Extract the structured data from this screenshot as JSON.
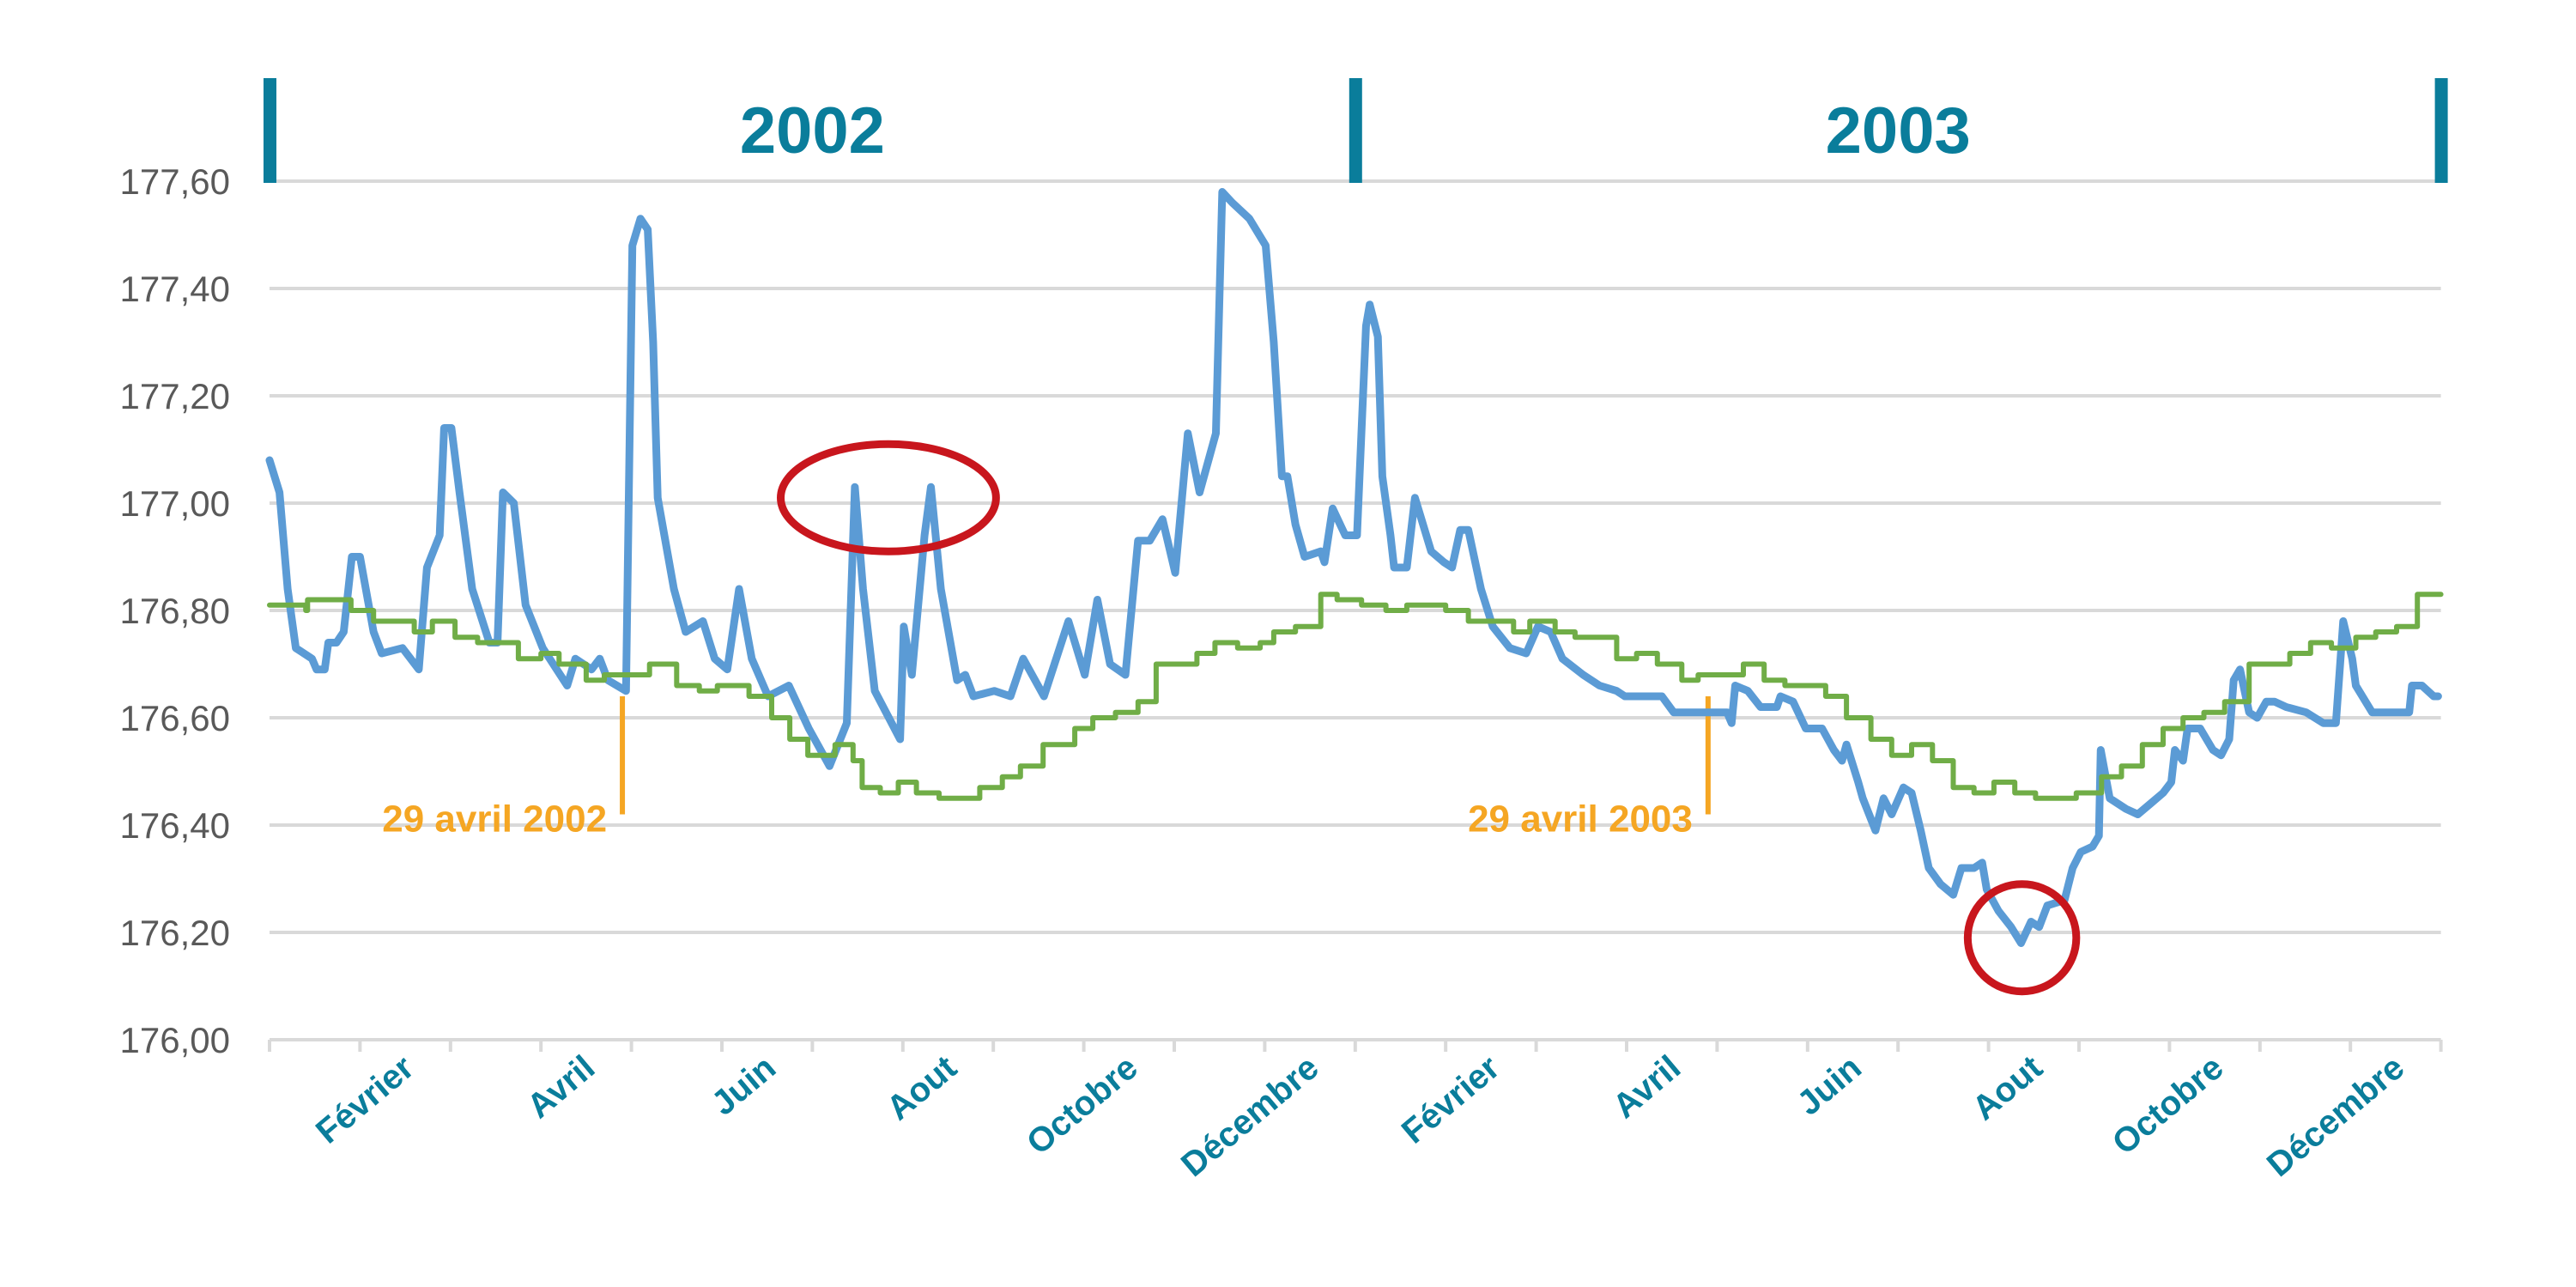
{
  "chart_data": {
    "type": "line",
    "title": "",
    "xlabel": "",
    "ylabel": "",
    "ylim": [
      176.0,
      177.6
    ],
    "xlim_months": [
      0,
      24
    ],
    "grid": true,
    "yticks": [
      "177,60",
      "177,40",
      "177,20",
      "177,00",
      "176,80",
      "176,60",
      "176,40",
      "176,20",
      "176,00"
    ],
    "ytick_values": [
      177.6,
      177.4,
      177.2,
      177.0,
      176.8,
      176.6,
      176.4,
      176.2,
      176.0
    ],
    "xticks": [
      {
        "label": "Février",
        "month": 1
      },
      {
        "label": "Avril",
        "month": 3
      },
      {
        "label": "Juin",
        "month": 5
      },
      {
        "label": "Aout",
        "month": 7
      },
      {
        "label": "Octobre",
        "month": 9
      },
      {
        "label": "Décembre",
        "month": 11
      },
      {
        "label": "Février",
        "month": 13
      },
      {
        "label": "Avril",
        "month": 15
      },
      {
        "label": "Juin",
        "month": 17
      },
      {
        "label": "Aout",
        "month": 19
      },
      {
        "label": "Octobre",
        "month": 21
      },
      {
        "label": "Décembre",
        "month": 23
      }
    ],
    "years": [
      {
        "label": "2002",
        "start": 0,
        "end": 12
      },
      {
        "label": "2003",
        "start": 12,
        "end": 24
      }
    ],
    "annotations": [
      {
        "label": "29 avril 2002",
        "month": 3.9,
        "from": 176.64,
        "to": 176.42
      },
      {
        "label": "29 avril 2003",
        "month": 15.9,
        "from": 176.64,
        "to": 176.42
      }
    ],
    "highlights": [
      {
        "month": 6.84,
        "value": 177.01,
        "rx_months": 1.19,
        "ry_value": 0.1
      },
      {
        "month": 19.37,
        "value": 176.19,
        "rx_months": 0.6,
        "ry_value": 0.1
      }
    ],
    "colors": {
      "observed": "#5b9bd5",
      "reference": "#70ad47",
      "annotation": "#f5a623",
      "highlight": "#c8161d",
      "accent": "#0a7d9b",
      "grid": "#d9d9d9"
    },
    "series": [
      {
        "name": "observed",
        "step": false,
        "points": [
          [
            0,
            177.08
          ],
          [
            0.11,
            177.02
          ],
          [
            0.2,
            176.84
          ],
          [
            0.29,
            176.73
          ],
          [
            0.47,
            176.71
          ],
          [
            0.52,
            176.69
          ],
          [
            0.61,
            176.69
          ],
          [
            0.65,
            176.74
          ],
          [
            0.74,
            176.74
          ],
          [
            0.82,
            176.76
          ],
          [
            0.91,
            176.9
          ],
          [
            1.0,
            176.9
          ],
          [
            1.15,
            176.76
          ],
          [
            1.24,
            176.72
          ],
          [
            1.47,
            176.73
          ],
          [
            1.65,
            176.69
          ],
          [
            1.74,
            176.88
          ],
          [
            1.88,
            176.94
          ],
          [
            1.93,
            177.14
          ],
          [
            2.01,
            177.14
          ],
          [
            2.1,
            177.02
          ],
          [
            2.24,
            176.84
          ],
          [
            2.43,
            176.74
          ],
          [
            2.52,
            176.74
          ],
          [
            2.58,
            177.02
          ],
          [
            2.7,
            177.0
          ],
          [
            2.83,
            176.81
          ],
          [
            3.02,
            176.73
          ],
          [
            3.29,
            176.66
          ],
          [
            3.38,
            176.71
          ],
          [
            3.56,
            176.69
          ],
          [
            3.65,
            176.71
          ],
          [
            3.74,
            176.67
          ],
          [
            3.94,
            176.65
          ],
          [
            4.01,
            177.48
          ],
          [
            4.1,
            177.53
          ],
          [
            4.18,
            177.51
          ],
          [
            4.24,
            177.3
          ],
          [
            4.29,
            177.01
          ],
          [
            4.47,
            176.84
          ],
          [
            4.6,
            176.76
          ],
          [
            4.79,
            176.78
          ],
          [
            4.92,
            176.71
          ],
          [
            5.06,
            176.69
          ],
          [
            5.19,
            176.84
          ],
          [
            5.33,
            176.71
          ],
          [
            5.51,
            176.64
          ],
          [
            5.74,
            176.66
          ],
          [
            5.96,
            176.58
          ],
          [
            6.19,
            176.51
          ],
          [
            6.38,
            176.59
          ],
          [
            6.47,
            177.03
          ],
          [
            6.56,
            176.84
          ],
          [
            6.69,
            176.65
          ],
          [
            6.97,
            176.56
          ],
          [
            7.01,
            176.77
          ],
          [
            7.1,
            176.68
          ],
          [
            7.24,
            176.94
          ],
          [
            7.31,
            177.03
          ],
          [
            7.42,
            176.84
          ],
          [
            7.6,
            176.67
          ],
          [
            7.69,
            176.68
          ],
          [
            7.78,
            176.64
          ],
          [
            8.01,
            176.65
          ],
          [
            8.19,
            176.64
          ],
          [
            8.33,
            176.71
          ],
          [
            8.56,
            176.64
          ],
          [
            8.83,
            176.78
          ],
          [
            9.01,
            176.68
          ],
          [
            9.15,
            176.82
          ],
          [
            9.29,
            176.7
          ],
          [
            9.46,
            176.68
          ],
          [
            9.6,
            176.93
          ],
          [
            9.73,
            176.93
          ],
          [
            9.87,
            176.97
          ],
          [
            10.01,
            176.87
          ],
          [
            10.15,
            177.13
          ],
          [
            10.28,
            177.02
          ],
          [
            10.46,
            177.13
          ],
          [
            10.53,
            177.58
          ],
          [
            10.64,
            177.56
          ],
          [
            10.83,
            177.53
          ],
          [
            11.01,
            177.48
          ],
          [
            11.1,
            177.3
          ],
          [
            11.19,
            177.05
          ],
          [
            11.25,
            177.05
          ],
          [
            11.34,
            176.96
          ],
          [
            11.44,
            176.9
          ],
          [
            11.62,
            176.91
          ],
          [
            11.66,
            176.89
          ],
          [
            11.75,
            176.99
          ],
          [
            11.89,
            176.94
          ],
          [
            12.02,
            176.94
          ],
          [
            12.12,
            177.33
          ],
          [
            12.16,
            177.37
          ],
          [
            12.25,
            177.31
          ],
          [
            12.3,
            177.05
          ],
          [
            12.39,
            176.94
          ],
          [
            12.43,
            176.88
          ],
          [
            12.57,
            176.88
          ],
          [
            12.66,
            177.01
          ],
          [
            12.84,
            176.91
          ],
          [
            12.98,
            176.89
          ],
          [
            13.07,
            176.88
          ],
          [
            13.16,
            176.95
          ],
          [
            13.25,
            176.95
          ],
          [
            13.39,
            176.84
          ],
          [
            13.52,
            176.77
          ],
          [
            13.71,
            176.73
          ],
          [
            13.89,
            176.72
          ],
          [
            14.02,
            176.77
          ],
          [
            14.16,
            176.76
          ],
          [
            14.29,
            176.71
          ],
          [
            14.52,
            176.68
          ],
          [
            14.7,
            176.66
          ],
          [
            14.89,
            176.65
          ],
          [
            14.98,
            176.64
          ],
          [
            15.39,
            176.64
          ],
          [
            15.52,
            176.61
          ],
          [
            16.11,
            176.61
          ],
          [
            16.16,
            176.59
          ],
          [
            16.2,
            176.66
          ],
          [
            16.34,
            176.65
          ],
          [
            16.48,
            176.62
          ],
          [
            16.66,
            176.62
          ],
          [
            16.7,
            176.64
          ],
          [
            16.84,
            176.63
          ],
          [
            16.98,
            176.58
          ],
          [
            17.16,
            176.58
          ],
          [
            17.29,
            176.54
          ],
          [
            17.38,
            176.52
          ],
          [
            17.43,
            176.55
          ],
          [
            17.56,
            176.48
          ],
          [
            17.61,
            176.45
          ],
          [
            17.75,
            176.39
          ],
          [
            17.84,
            176.45
          ],
          [
            17.93,
            176.42
          ],
          [
            18.06,
            176.47
          ],
          [
            18.15,
            176.46
          ],
          [
            18.25,
            176.39
          ],
          [
            18.34,
            176.32
          ],
          [
            18.47,
            176.29
          ],
          [
            18.61,
            176.27
          ],
          [
            18.7,
            176.32
          ],
          [
            18.84,
            176.32
          ],
          [
            18.93,
            176.33
          ],
          [
            18.98,
            176.28
          ],
          [
            19.11,
            176.24
          ],
          [
            19.25,
            176.21
          ],
          [
            19.36,
            176.18
          ],
          [
            19.47,
            176.22
          ],
          [
            19.56,
            176.21
          ],
          [
            19.65,
            176.25
          ],
          [
            19.84,
            176.26
          ],
          [
            19.93,
            176.32
          ],
          [
            20.02,
            176.35
          ],
          [
            20.15,
            176.36
          ],
          [
            20.22,
            176.38
          ],
          [
            20.24,
            176.54
          ],
          [
            20.34,
            176.45
          ],
          [
            20.52,
            176.43
          ],
          [
            20.65,
            176.42
          ],
          [
            20.79,
            176.44
          ],
          [
            20.93,
            176.46
          ],
          [
            21.02,
            176.48
          ],
          [
            21.06,
            176.54
          ],
          [
            21.15,
            176.52
          ],
          [
            21.2,
            176.58
          ],
          [
            21.34,
            176.58
          ],
          [
            21.48,
            176.54
          ],
          [
            21.57,
            176.53
          ],
          [
            21.66,
            176.56
          ],
          [
            21.71,
            176.67
          ],
          [
            21.78,
            176.69
          ],
          [
            21.88,
            176.61
          ],
          [
            21.97,
            176.6
          ],
          [
            22.07,
            176.63
          ],
          [
            22.16,
            176.63
          ],
          [
            22.29,
            176.62
          ],
          [
            22.51,
            176.61
          ],
          [
            22.7,
            176.59
          ],
          [
            22.84,
            176.59
          ],
          [
            22.92,
            176.78
          ],
          [
            23.02,
            176.71
          ],
          [
            23.06,
            176.66
          ],
          [
            23.24,
            176.61
          ],
          [
            23.65,
            176.61
          ],
          [
            23.68,
            176.66
          ],
          [
            23.79,
            176.66
          ],
          [
            23.92,
            176.64
          ],
          [
            23.97,
            176.64
          ]
        ]
      },
      {
        "name": "reference",
        "step": true,
        "points": [
          [
            0,
            176.81
          ],
          [
            0.4,
            176.8
          ],
          [
            0.42,
            176.82
          ],
          [
            0.9,
            176.8
          ],
          [
            1.15,
            176.78
          ],
          [
            1.6,
            176.76
          ],
          [
            1.8,
            176.78
          ],
          [
            2.05,
            176.75
          ],
          [
            2.3,
            176.74
          ],
          [
            2.75,
            176.71
          ],
          [
            3.0,
            176.72
          ],
          [
            3.2,
            176.7
          ],
          [
            3.5,
            176.67
          ],
          [
            3.7,
            176.68
          ],
          [
            4.2,
            176.7
          ],
          [
            4.5,
            176.66
          ],
          [
            4.75,
            176.65
          ],
          [
            4.95,
            176.66
          ],
          [
            5.3,
            176.64
          ],
          [
            5.55,
            176.6
          ],
          [
            5.75,
            176.56
          ],
          [
            5.95,
            176.53
          ],
          [
            6.25,
            176.55
          ],
          [
            6.45,
            176.52
          ],
          [
            6.55,
            176.47
          ],
          [
            6.75,
            176.46
          ],
          [
            6.95,
            176.48
          ],
          [
            7.15,
            176.46
          ],
          [
            7.4,
            176.45
          ],
          [
            7.85,
            176.47
          ],
          [
            8.1,
            176.49
          ],
          [
            8.3,
            176.51
          ],
          [
            8.55,
            176.55
          ],
          [
            8.9,
            176.58
          ],
          [
            9.1,
            176.6
          ],
          [
            9.35,
            176.61
          ],
          [
            9.6,
            176.63
          ],
          [
            9.8,
            176.7
          ],
          [
            10.25,
            176.72
          ],
          [
            10.45,
            176.74
          ],
          [
            10.7,
            176.73
          ],
          [
            10.95,
            176.74
          ],
          [
            11.1,
            176.76
          ],
          [
            11.34,
            176.77
          ],
          [
            11.62,
            176.83
          ],
          [
            11.8,
            176.82
          ],
          [
            12.07,
            176.81
          ],
          [
            12.34,
            176.8
          ],
          [
            12.57,
            176.81
          ],
          [
            13.0,
            176.8
          ],
          [
            13.25,
            176.78
          ],
          [
            13.75,
            176.76
          ],
          [
            13.93,
            176.78
          ],
          [
            14.21,
            176.76
          ],
          [
            14.43,
            176.75
          ],
          [
            14.89,
            176.71
          ],
          [
            15.11,
            176.72
          ],
          [
            15.34,
            176.7
          ],
          [
            15.61,
            176.67
          ],
          [
            15.79,
            176.68
          ],
          [
            16.29,
            176.7
          ],
          [
            16.52,
            176.67
          ],
          [
            16.75,
            176.66
          ],
          [
            17.2,
            176.64
          ],
          [
            17.43,
            176.6
          ],
          [
            17.7,
            176.56
          ],
          [
            17.93,
            176.53
          ],
          [
            18.15,
            176.55
          ],
          [
            18.38,
            176.52
          ],
          [
            18.61,
            176.47
          ],
          [
            18.84,
            176.46
          ],
          [
            19.06,
            176.48
          ],
          [
            19.29,
            176.46
          ],
          [
            19.52,
            176.45
          ],
          [
            19.97,
            176.46
          ],
          [
            20.25,
            176.49
          ],
          [
            20.47,
            176.51
          ],
          [
            20.7,
            176.55
          ],
          [
            20.93,
            176.58
          ],
          [
            21.15,
            176.6
          ],
          [
            21.38,
            176.61
          ],
          [
            21.61,
            176.63
          ],
          [
            21.88,
            176.7
          ],
          [
            22.33,
            176.72
          ],
          [
            22.56,
            176.74
          ],
          [
            22.79,
            176.73
          ],
          [
            23.06,
            176.75
          ],
          [
            23.28,
            176.76
          ],
          [
            23.51,
            176.77
          ],
          [
            23.74,
            176.83
          ],
          [
            24,
            176.83
          ]
        ]
      }
    ]
  }
}
